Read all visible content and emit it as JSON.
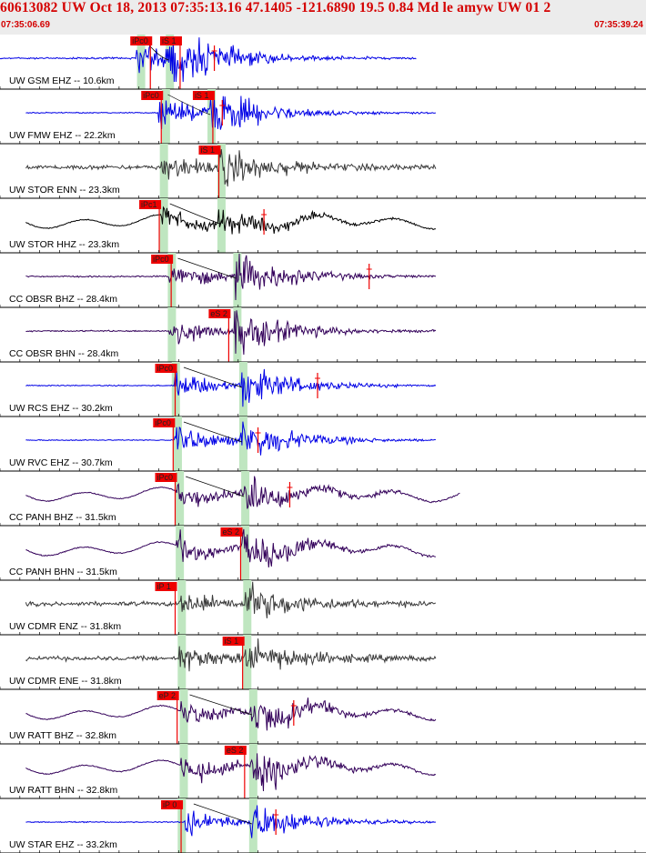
{
  "header": {
    "title": "60613082 UW Oct 18, 2013 07:35:13.16    47.1405 -121.6890 19.5 0.84 Md le amyw UW 01    2",
    "time_start": "07:35:06.69",
    "time_end": "07:35:39.24"
  },
  "colors": {
    "header_text": "#d40000",
    "pick": "#ee0000",
    "blue_trace": "#0000e6",
    "purple_trace": "#33005a",
    "gray_trace": "#3a3a3a",
    "black_trace": "#000000",
    "green_band": "#bfe6c0",
    "divider": "#000000"
  },
  "chart_data": {
    "type": "line",
    "description_free": true,
    "time_range_s": [
      0,
      32.55
    ],
    "traces": [
      {
        "label": "UW GSM EHZ -- 10.6km",
        "color": "blue",
        "p": 6.85,
        "s": 8.4,
        "band": 6.95,
        "picks": [
          {
            "t": 6.75,
            "text": "iPc0"
          },
          {
            "t": 8.25,
            "text": "iS 1"
          }
        ],
        "arrival": 10.8,
        "end": 21.0,
        "env": "flat",
        "amp": 0.9,
        "noise": 0.05
      },
      {
        "label": "UW FMW EHZ -- 22.2km",
        "color": "blue",
        "p": 8.0,
        "s": 10.5,
        "band": 8.2,
        "picks": [
          {
            "t": 7.3,
            "text": "iPc0"
          },
          {
            "t": 9.9,
            "text": "iS 1"
          }
        ],
        "arrival": 11.2,
        "end": 22.0,
        "env": "flat",
        "amp": 0.8,
        "noise": 0.03
      },
      {
        "label": "UW STOR ENN -- 23.3km",
        "color": "gray",
        "p": 8.1,
        "s": 11.0,
        "band": 8.1,
        "picks": [
          {
            "t": 10.2,
            "text": "iS 1"
          }
        ],
        "end": 22.0,
        "env": "flat",
        "amp": 0.6,
        "noise": 0.12
      },
      {
        "label": "UW STOR HHZ -- 23.3km",
        "color": "black",
        "p": 8.1,
        "s": 11.0,
        "band": 8.1,
        "picks": [
          {
            "t": 7.2,
            "text": "iPc1"
          }
        ],
        "arrival": 13.3,
        "end": 22.0,
        "env": "wave",
        "amp": 0.6,
        "noise": 0.03
      },
      {
        "label": "CC OBSR BHZ -- 28.4km",
        "color": "purple",
        "p": 8.5,
        "s": 11.8,
        "band": 8.5,
        "picks": [
          {
            "t": 7.8,
            "text": "iPc0"
          }
        ],
        "arrival": 18.6,
        "end": 22.0,
        "env": "flat",
        "amp": 0.75,
        "noise": 0.04
      },
      {
        "label": "CC OBSR BHN -- 28.4km",
        "color": "purple",
        "p": 8.5,
        "s": 11.8,
        "band": 8.5,
        "picks": [
          {
            "t": 10.7,
            "text": "eS 2"
          }
        ],
        "end": 22.0,
        "env": "flat",
        "amp": 0.75,
        "noise": 0.04
      },
      {
        "label": "UW RCS EHZ -- 30.2km",
        "color": "blue",
        "p": 8.8,
        "s": 12.1,
        "band": 8.7,
        "picks": [
          {
            "t": 8.0,
            "text": "iPc0"
          }
        ],
        "arrival": 16.0,
        "end": 22.0,
        "env": "flat",
        "amp": 0.7,
        "noise": 0.03
      },
      {
        "label": "UW RVC EHZ -- 30.7km",
        "color": "blue",
        "p": 8.8,
        "s": 12.1,
        "band": 8.8,
        "picks": [
          {
            "t": 7.9,
            "text": "iPc0"
          }
        ],
        "arrival": 13.0,
        "end": 22.0,
        "env": "flat",
        "amp": 0.75,
        "noise": 0.03
      },
      {
        "label": "CC PANH BHZ -- 31.5km",
        "color": "purple",
        "p": 8.9,
        "s": 12.2,
        "band": 8.9,
        "picks": [
          {
            "t": 8.0,
            "text": "iPc0"
          }
        ],
        "arrival": 14.6,
        "end": 23.2,
        "env": "wave",
        "amp": 0.7,
        "noise": 0.03
      },
      {
        "label": "CC PANH BHN -- 31.5km",
        "color": "purple",
        "p": 8.9,
        "s": 12.2,
        "band": 8.9,
        "picks": [
          {
            "t": 11.3,
            "text": "eS 2"
          }
        ],
        "end": 22.0,
        "env": "wave",
        "amp": 0.7,
        "noise": 0.03
      },
      {
        "label": "UW CDMR ENZ -- 31.8km",
        "color": "gray",
        "p": 9.0,
        "s": 12.3,
        "band": 9.0,
        "picks": [
          {
            "t": 8.0,
            "text": "iP 1"
          }
        ],
        "end": 22.0,
        "env": "flat",
        "amp": 0.6,
        "noise": 0.12
      },
      {
        "label": "UW CDMR ENE -- 31.8km",
        "color": "gray",
        "p": 9.0,
        "s": 12.3,
        "band": 9.0,
        "picks": [
          {
            "t": 11.4,
            "text": "iS 1"
          }
        ],
        "end": 22.0,
        "env": "flat",
        "amp": 0.6,
        "noise": 0.12
      },
      {
        "label": "UW RATT BHZ -- 32.8km",
        "color": "purple",
        "p": 9.1,
        "s": 12.6,
        "band": 9.1,
        "picks": [
          {
            "t": 8.1,
            "text": "eP 2"
          }
        ],
        "arrival": 14.8,
        "end": 22.0,
        "env": "wave",
        "amp": 0.75,
        "noise": 0.03
      },
      {
        "label": "UW RATT BHN -- 32.8km",
        "color": "purple",
        "p": 9.1,
        "s": 12.6,
        "band": 9.1,
        "picks": [
          {
            "t": 11.5,
            "text": "eS 2"
          }
        ],
        "end": 22.0,
        "env": "wave",
        "amp": 0.75,
        "noise": 0.03
      },
      {
        "label": "UW STAR EHZ -- 33.2km",
        "color": "blue",
        "p": 9.3,
        "s": 12.6,
        "band": 9.0,
        "picks": [
          {
            "t": 8.3,
            "text": "iP 0"
          }
        ],
        "arrival": 13.9,
        "end": 22.0,
        "env": "flat",
        "amp": 0.7,
        "noise": 0.03
      }
    ]
  }
}
